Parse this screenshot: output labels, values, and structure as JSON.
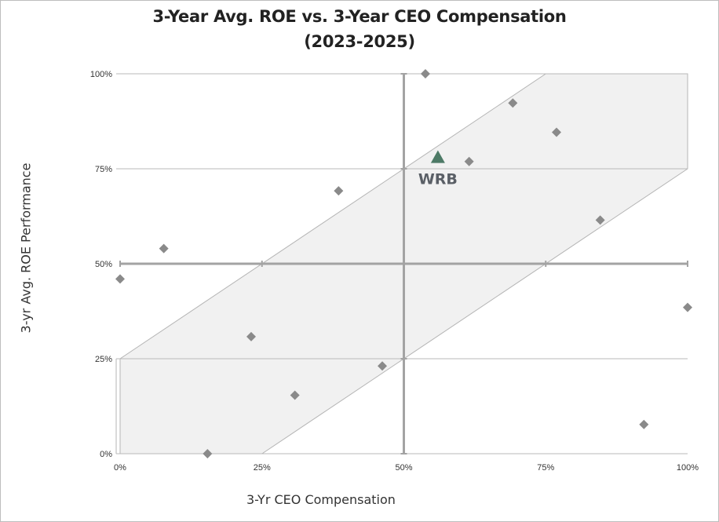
{
  "chart_data": {
    "type": "scatter",
    "title": "3-Year Avg. ROE vs. 3-Year CEO Compensation",
    "subtitle": "(2023-2025)",
    "xlabel": "3-Yr CEO Compensation",
    "ylabel": "3-yr Avg. ROE Performance",
    "xlim": [
      0,
      100
    ],
    "ylim": [
      0,
      100
    ],
    "x_ticks": [
      "0%",
      "25%",
      "50%",
      "75%",
      "100%"
    ],
    "y_ticks": [
      "0%",
      "25%",
      "50%",
      "75%",
      "100%"
    ],
    "x_tick_values": [
      0,
      25,
      50,
      75,
      100
    ],
    "y_tick_values": [
      0,
      25,
      50,
      75,
      100
    ],
    "grid": "horizontal",
    "alignment_band": {
      "offset": 25,
      "description": "shaded band where ROE percentile is within 25 points of compensation percentile"
    },
    "series": [
      {
        "points": [
          [
            0,
            46
          ],
          [
            7.7,
            54
          ],
          [
            15.4,
            0
          ],
          [
            23.1,
            30.8
          ],
          [
            30.8,
            15.4
          ],
          [
            38.5,
            69.2
          ],
          [
            46.2,
            23.1
          ],
          [
            53.8,
            100
          ],
          [
            61.5,
            76.9
          ],
          [
            69.2,
            92.3
          ],
          [
            76.9,
            84.6
          ],
          [
            84.6,
            61.5
          ],
          [
            92.3,
            7.7
          ],
          [
            100,
            38.5
          ]
        ],
        "marker": "diamond",
        "color": "#8a8a8a"
      },
      {
        "points": [
          [
            56,
            78
          ]
        ],
        "marker": "triangle",
        "color": "#4d7a66"
      }
    ],
    "annotations": [
      {
        "text": "WRB",
        "x": 56,
        "y": 78
      }
    ],
    "colors": {
      "band_fill": "#f1f1f1",
      "band_stroke": "#b5b5b5",
      "grid": "#b9b9b9",
      "axis": "#a3a3a3",
      "marker": "#8a8a8a",
      "highlight": "#4d7a66"
    }
  }
}
